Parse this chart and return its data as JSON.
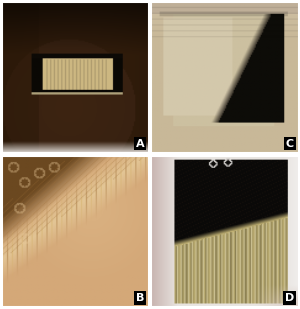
{
  "figsize": [
    3.0,
    3.09
  ],
  "dpi": 100,
  "label_bg": "#000000",
  "label_fg": "#ffffff",
  "label_fontsize": 8,
  "border_color": "#ffffff",
  "border_width": 1.5,
  "wspace": 0.015,
  "hspace": 0.015,
  "panels": {
    "A": {
      "bg": "#4a3020",
      "skin_dark": "#2a1808",
      "skin_mid": "#3d2412",
      "skin_light": "#5a3820",
      "nail_black": "#0d0a06",
      "nail_dark": "#181410",
      "nail_yellow": "#c8b078",
      "nail_cream": "#d8c898",
      "white_bottom": "#e8e4e0"
    },
    "B": {
      "bg_peach": "#d4a878",
      "bg_light": "#e8c898",
      "dark_brown": "#6b4820",
      "mid_brown": "#a07038",
      "yellow_streak": "#d4b068",
      "light_streak": "#e8d0a0",
      "bubble_color": "#c8b080"
    },
    "C": {
      "skin_bg": "#c8b898",
      "skin_light": "#ddd0b8",
      "nail_beige": "#ccc0a0",
      "nail_light": "#e0d4bc",
      "nail_dark": "#1a1510",
      "nail_black": "#0d0c08",
      "cuticle": "#b8a888",
      "fold_skin": "#bfaf98"
    },
    "D": {
      "bg_white": "#e8e4e0",
      "bg_pink": "#d8c8c0",
      "left_pink": "#c8b4b0",
      "nail_white": "#f0eee8",
      "black_region": "#0a0908",
      "dark_brown": "#2a2018",
      "yellow_region": "#c8b878",
      "streak_light": "#e0d4a0",
      "right_white": "#f0eeec"
    }
  }
}
